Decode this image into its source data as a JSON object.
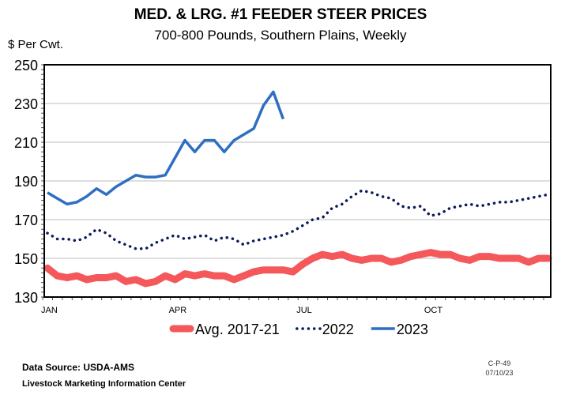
{
  "chart_data": {
    "type": "line",
    "title": "MED. & LRG. #1 FEEDER STEER PRICES",
    "subtitle": "700-800 Pounds, Southern Plains, Weekly",
    "ylabel": "$ Per Cwt.",
    "ylim": [
      130,
      250
    ],
    "yticks": [
      130,
      150,
      170,
      190,
      210,
      230,
      250
    ],
    "xlabels": [
      {
        "label": "JAN",
        "week": 1
      },
      {
        "label": "APR",
        "week": 14
      },
      {
        "label": "JUL",
        "week": 27
      },
      {
        "label": "OCT",
        "week": 40
      }
    ],
    "x_unit": "week",
    "grid": true,
    "legend_position": "bottom",
    "series": [
      {
        "name": "Avg. 2017-21",
        "color": "#f4585a",
        "style": "thick",
        "values": [
          145,
          141,
          140,
          141,
          139,
          140,
          140,
          141,
          138,
          139,
          137,
          138,
          141,
          139,
          142,
          141,
          142,
          141,
          141,
          139,
          141,
          143,
          144,
          144,
          144,
          143,
          147,
          150,
          152,
          151,
          152,
          150,
          149,
          150,
          150,
          148,
          149,
          151,
          152,
          153,
          152,
          152,
          150,
          149,
          151,
          151,
          150,
          150,
          150,
          148,
          150,
          150
        ]
      },
      {
        "name": "2022",
        "color": "#0d1b5a",
        "style": "dotted",
        "values": [
          163,
          160,
          160,
          159,
          161,
          165,
          163,
          159,
          157,
          155,
          155,
          158,
          160,
          162,
          160,
          161,
          162,
          159,
          161,
          160,
          157,
          159,
          160,
          161,
          162,
          164,
          167,
          170,
          171,
          176,
          178,
          182,
          185,
          184,
          182,
          181,
          177,
          176,
          177,
          172,
          173,
          176,
          177,
          178,
          177,
          178,
          179,
          179,
          180,
          181,
          182,
          183
        ]
      },
      {
        "name": "2023",
        "color": "#2e6fc2",
        "style": "solid",
        "values": [
          184,
          181,
          178,
          179,
          182,
          186,
          183,
          187,
          190,
          193,
          192,
          192,
          193,
          202,
          211,
          205,
          211,
          211,
          205,
          211,
          214,
          217,
          229,
          236,
          222
        ]
      }
    ]
  },
  "footer": {
    "source": "Data Source:  USDA-AMS",
    "org": "Livestock Marketing Information Center",
    "code": "C-P-49",
    "date": "07/10/23"
  }
}
